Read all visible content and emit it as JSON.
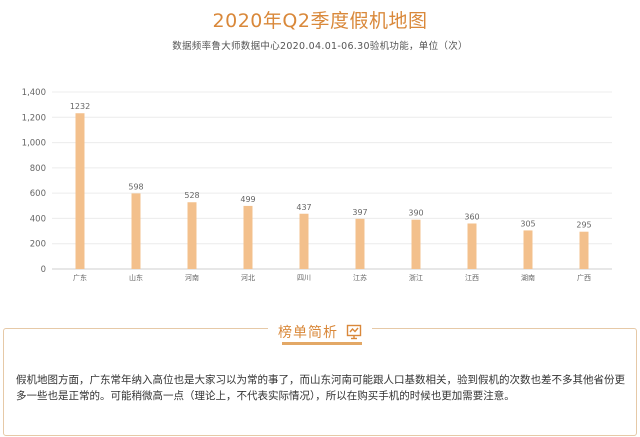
{
  "header": {
    "title": "2020年Q2季度假机地图",
    "subtitle": "数据频率鲁大师数据中心2020.04.01-06.30验机功能，单位（次）"
  },
  "chart_data": {
    "type": "bar",
    "categories": [
      "广东",
      "山东",
      "河南",
      "河北",
      "四川",
      "江苏",
      "浙江",
      "江西",
      "湖南",
      "广西"
    ],
    "values": [
      1232,
      598,
      528,
      499,
      437,
      397,
      390,
      360,
      305,
      295
    ],
    "ylim": [
      0,
      1400
    ],
    "yticks": [
      0,
      200,
      400,
      600,
      800,
      1000,
      1200,
      1400
    ],
    "ytick_labels": [
      "0",
      "200",
      "400",
      "600",
      "800",
      "1,000",
      "1,200",
      "1,400"
    ],
    "grid": true,
    "bar_color": "#f3c08c",
    "title": "",
    "xlabel": "",
    "ylabel": ""
  },
  "analysis": {
    "title": "榜单简析",
    "icon": "chart-check-icon",
    "text": "假机地图方面，广东常年纳入高位也是大家习以为常的事了，而山东河南可能跟人口基数相关，验到假机的次数也差不多其他省份更多一些也是正常的。可能稍微高一点（理论上，不代表实际情况），所以在购买手机的时候也更加需要注意。"
  },
  "colors": {
    "accent": "#d9883a",
    "bar": "#f3c08c",
    "border": "#e6c9a7"
  }
}
